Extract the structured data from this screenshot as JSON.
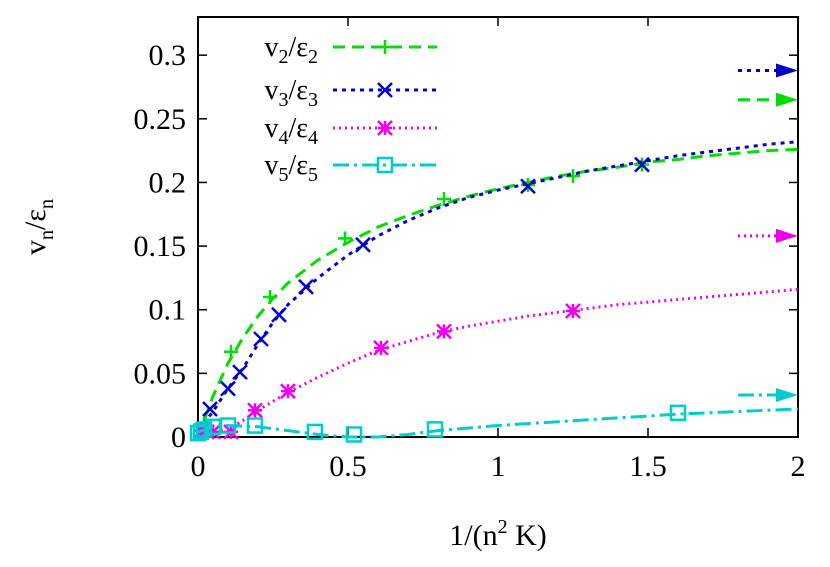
{
  "chart_data": {
    "type": "line",
    "xlabel": "1/(n",
    "xlabel_sup": "2",
    "xlabel_tail": " K)",
    "ylabel_main": "v",
    "ylabel_sub": "n",
    "ylabel_sep": "/ε",
    "ylabel_sub2": "n",
    "xlim": [
      0,
      2
    ],
    "ylim": [
      0,
      0.33
    ],
    "xticks": [
      "0",
      "0.5",
      "1",
      "1.5",
      "2"
    ],
    "xtick_values": [
      0,
      0.5,
      1,
      1.5,
      2
    ],
    "yticks": [
      "0",
      "0.05",
      "0.1",
      "0.15",
      "0.2",
      "0.25",
      "0.3"
    ],
    "ytick_values": [
      0,
      0.05,
      0.1,
      0.15,
      0.2,
      0.25,
      0.3
    ],
    "grid": false,
    "legend_position": "top-left",
    "series": [
      {
        "id": "v2",
        "legend_main": "v",
        "legend_sub": "2",
        "legend_sep": "/ε",
        "legend_sub2": "2",
        "color": "#00dd00",
        "dash": "12 7",
        "marker": "plus",
        "points": [
          [
            0.01,
            0.005
          ],
          [
            0.02,
            0.01
          ],
          [
            0.11,
            0.067
          ],
          [
            0.24,
            0.11
          ],
          [
            0.49,
            0.156
          ],
          [
            0.82,
            0.187
          ],
          [
            1.1,
            0.198
          ],
          [
            1.25,
            0.205
          ],
          [
            1.48,
            0.214
          ]
        ],
        "curve": [
          [
            0,
            0
          ],
          [
            0.05,
            0.032
          ],
          [
            0.1,
            0.058
          ],
          [
            0.15,
            0.078
          ],
          [
            0.2,
            0.095
          ],
          [
            0.25,
            0.109
          ],
          [
            0.3,
            0.121
          ],
          [
            0.4,
            0.139
          ],
          [
            0.5,
            0.153
          ],
          [
            0.6,
            0.165
          ],
          [
            0.7,
            0.174
          ],
          [
            0.8,
            0.182
          ],
          [
            0.9,
            0.189
          ],
          [
            1.0,
            0.195
          ],
          [
            1.1,
            0.2
          ],
          [
            1.2,
            0.205
          ],
          [
            1.3,
            0.209
          ],
          [
            1.4,
            0.212
          ],
          [
            1.5,
            0.216
          ],
          [
            1.6,
            0.218
          ],
          [
            1.7,
            0.221
          ],
          [
            1.8,
            0.223
          ],
          [
            1.9,
            0.225
          ],
          [
            2.0,
            0.226
          ]
        ],
        "asymptote": 0.265
      },
      {
        "id": "v3",
        "legend_main": "v",
        "legend_sub": "3",
        "legend_sep": "/ε",
        "legend_sub2": "3",
        "color": "#0000cc",
        "dash": "4 5",
        "marker": "x",
        "points": [
          [
            0.04,
            0.022
          ],
          [
            0.1,
            0.038
          ],
          [
            0.14,
            0.051
          ],
          [
            0.21,
            0.077
          ],
          [
            0.27,
            0.096
          ],
          [
            0.36,
            0.118
          ],
          [
            0.55,
            0.151
          ],
          [
            1.1,
            0.197
          ],
          [
            1.48,
            0.214
          ]
        ],
        "curve": [
          [
            0,
            0.005
          ],
          [
            0.05,
            0.02
          ],
          [
            0.1,
            0.038
          ],
          [
            0.15,
            0.054
          ],
          [
            0.2,
            0.073
          ],
          [
            0.25,
            0.09
          ],
          [
            0.3,
            0.104
          ],
          [
            0.4,
            0.125
          ],
          [
            0.5,
            0.143
          ],
          [
            0.6,
            0.158
          ],
          [
            0.7,
            0.17
          ],
          [
            0.8,
            0.18
          ],
          [
            0.9,
            0.188
          ],
          [
            1.0,
            0.194
          ],
          [
            1.1,
            0.199
          ],
          [
            1.2,
            0.204
          ],
          [
            1.3,
            0.209
          ],
          [
            1.4,
            0.213
          ],
          [
            1.5,
            0.217
          ],
          [
            1.6,
            0.221
          ],
          [
            1.7,
            0.224
          ],
          [
            1.8,
            0.227
          ],
          [
            1.9,
            0.23
          ],
          [
            2.0,
            0.232
          ]
        ],
        "asymptote": 0.288
      },
      {
        "id": "v4",
        "legend_main": "v",
        "legend_sub": "4",
        "legend_sep": "/ε",
        "legend_sub2": "4",
        "color": "#ee00ee",
        "dash": "2 4",
        "marker": "star",
        "points": [
          [
            0.01,
            0.005
          ],
          [
            0.03,
            0.004
          ],
          [
            0.05,
            0.004
          ],
          [
            0.11,
            0.004
          ],
          [
            0.19,
            0.021
          ],
          [
            0.3,
            0.036
          ],
          [
            0.61,
            0.07
          ],
          [
            0.82,
            0.083
          ],
          [
            1.25,
            0.099
          ]
        ],
        "curve": [
          [
            0,
            0.0
          ],
          [
            0.1,
            0.006
          ],
          [
            0.15,
            0.013
          ],
          [
            0.2,
            0.021
          ],
          [
            0.3,
            0.035
          ],
          [
            0.4,
            0.047
          ],
          [
            0.5,
            0.058
          ],
          [
            0.6,
            0.068
          ],
          [
            0.7,
            0.075
          ],
          [
            0.8,
            0.082
          ],
          [
            0.9,
            0.087
          ],
          [
            1.0,
            0.091
          ],
          [
            1.1,
            0.095
          ],
          [
            1.2,
            0.098
          ],
          [
            1.3,
            0.101
          ],
          [
            1.4,
            0.104
          ],
          [
            1.5,
            0.106
          ],
          [
            1.6,
            0.108
          ],
          [
            1.7,
            0.11
          ],
          [
            1.8,
            0.112
          ],
          [
            1.9,
            0.114
          ],
          [
            2.0,
            0.116
          ]
        ],
        "asymptote": 0.158
      },
      {
        "id": "v5",
        "legend_main": "v",
        "legend_sub": "5",
        "legend_sep": "/ε",
        "legend_sub2": "5",
        "color": "#00cccc",
        "dash": "16 5 3 5",
        "marker": "square",
        "points": [
          [
            0.0,
            0.003
          ],
          [
            0.01,
            0.004
          ],
          [
            0.02,
            0.006
          ],
          [
            0.05,
            0.008
          ],
          [
            0.1,
            0.009
          ],
          [
            0.19,
            0.009
          ],
          [
            0.39,
            0.004
          ],
          [
            0.52,
            0.002
          ],
          [
            0.79,
            0.006
          ],
          [
            1.6,
            0.019
          ]
        ],
        "curve": [
          [
            0,
            0.004
          ],
          [
            0.05,
            0.008
          ],
          [
            0.1,
            0.009
          ],
          [
            0.2,
            0.008
          ],
          [
            0.3,
            0.005
          ],
          [
            0.4,
            0.002
          ],
          [
            0.5,
            0.0
          ],
          [
            0.6,
            0.0
          ],
          [
            0.7,
            0.002
          ],
          [
            0.8,
            0.005
          ],
          [
            0.9,
            0.007
          ],
          [
            1.0,
            0.009
          ],
          [
            1.2,
            0.012
          ],
          [
            1.4,
            0.015
          ],
          [
            1.6,
            0.018
          ],
          [
            1.8,
            0.02
          ],
          [
            2.0,
            0.022
          ]
        ],
        "asymptote": 0.033
      }
    ]
  }
}
